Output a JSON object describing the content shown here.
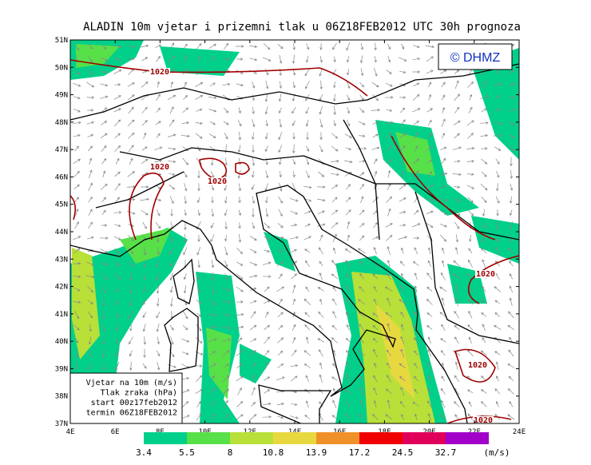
{
  "title": "ALADIN 10m vjetar i prizemni tlak u 06Z18FEB2012 UTC 30h prognoza",
  "watermark": "© DHMZ",
  "lat_labels": [
    "51N",
    "50N",
    "49N",
    "48N",
    "47N",
    "46N",
    "45N",
    "44N",
    "43N",
    "42N",
    "41N",
    "40N",
    "39N",
    "38N",
    "37N"
  ],
  "lon_labels": [
    "4E",
    "6E",
    "8E",
    "10E",
    "12E",
    "14E",
    "16E",
    "18E",
    "20E",
    "22E",
    "24E"
  ],
  "legend": [
    "Vjetar na 10m (m/s)",
    "Tlak zraka (hPa)",
    "start 00z17feb2012",
    "termin 06Z18FEB2012"
  ],
  "isobar_labels": [
    "1020",
    "1020",
    "1020",
    "1020",
    "1020",
    "1020"
  ],
  "scale": {
    "labels": [
      "3.4",
      "5.5",
      "8",
      "10.8",
      "13.9",
      "17.2",
      "24.5",
      "32.7"
    ],
    "unit": "(m/s)",
    "colors": [
      "#00d08a",
      "#58e048",
      "#b8e038",
      "#e8d840",
      "#f09028",
      "#f00000",
      "#e0005a",
      "#a000c8"
    ]
  }
}
